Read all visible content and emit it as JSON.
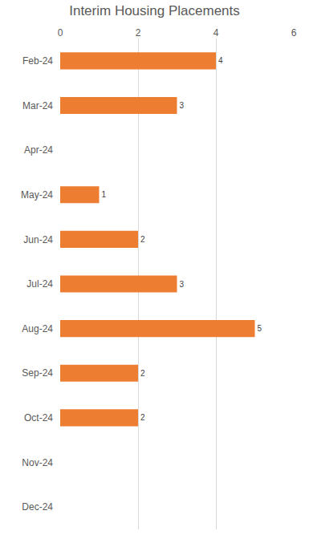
{
  "chart_data": {
    "type": "bar",
    "orientation": "horizontal",
    "title": "Interim Housing Placements",
    "categories": [
      "Feb-24",
      "Mar-24",
      "Apr-24",
      "May-24",
      "Jun-24",
      "Jul-24",
      "Aug-24",
      "Sep-24",
      "Oct-24",
      "Nov-24",
      "Dec-24"
    ],
    "values": [
      4,
      3,
      null,
      1,
      2,
      3,
      5,
      2,
      2,
      null,
      null
    ],
    "color": "#ed7d31",
    "xlim": [
      0,
      6
    ],
    "xticks": [
      0,
      2,
      4,
      6
    ],
    "grid": true,
    "data_labels": true
  }
}
